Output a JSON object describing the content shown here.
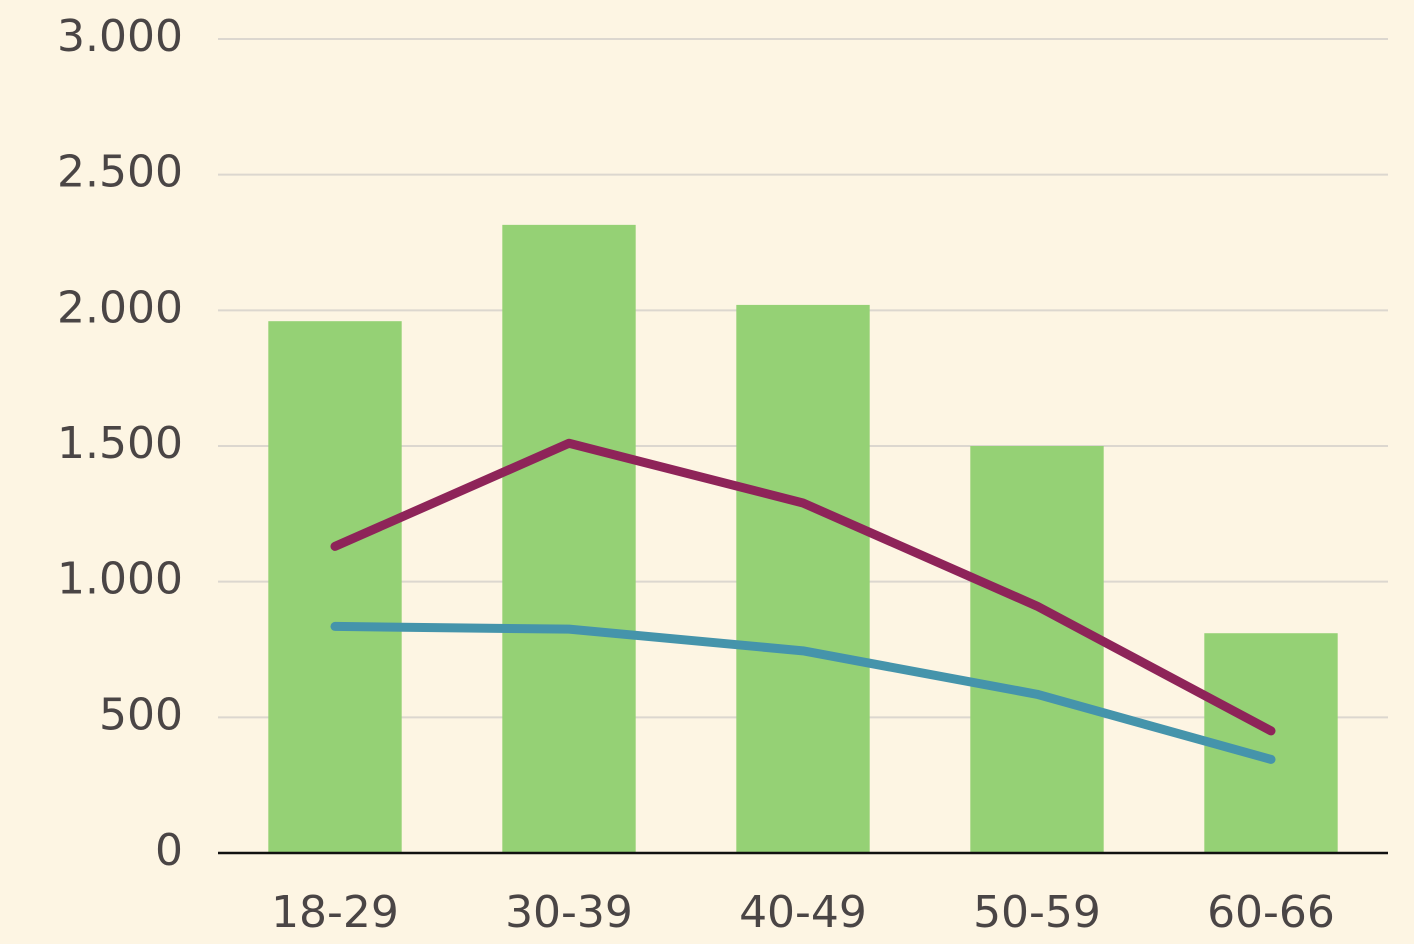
{
  "chart_data": {
    "type": "combo",
    "categories": [
      "18-29",
      "30-39",
      "40-49",
      "50-59",
      "60-66"
    ],
    "series": [
      {
        "type": "bar",
        "color": "#95d175",
        "values": [
          1960,
          2315,
          2020,
          1500,
          810
        ]
      },
      {
        "type": "line",
        "color": "#8e2459",
        "values": [
          1130,
          1510,
          1290,
          910,
          450
        ]
      },
      {
        "type": "line",
        "color": "#4594ab",
        "values": [
          835,
          825,
          745,
          585,
          345
        ]
      }
    ],
    "ylim": [
      0,
      3000
    ],
    "yticks": [
      0,
      500,
      {
        "value": 1000,
        "label": "1.000"
      },
      {
        "value": 1500,
        "label": "1.500"
      },
      {
        "value": 2000,
        "label": "2.000"
      },
      {
        "value": 2500,
        "label": "2.500"
      },
      {
        "value": 3000,
        "label": "3.000"
      }
    ],
    "grid": true
  }
}
